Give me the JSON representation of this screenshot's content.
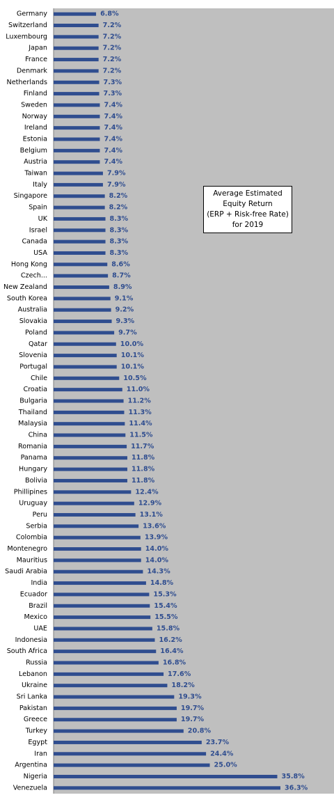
{
  "chart_data": {
    "type": "bar",
    "orientation": "horizontal",
    "title": "Average Estimated\nEquity Return\n(ERP + Risk-free Rate)\nfor 2019",
    "xlabel": "",
    "ylabel": "",
    "xlim": [
      0,
      40
    ],
    "grid": false,
    "legend": "none",
    "value_suffix": "%",
    "colors": {
      "bar": "#2F4D8F",
      "plot_background": "#BFBFBF",
      "label": "#2F4D8F"
    },
    "categories": [
      "Germany",
      "Switzerland",
      "Luxembourg",
      "Japan",
      "France",
      "Denmark",
      "Netherlands",
      "Finland",
      "Sweden",
      "Norway",
      "Ireland",
      "Estonia",
      "Belgium",
      "Austria",
      "Taiwan",
      "Italy",
      "Singapore",
      "Spain",
      "UK",
      "Israel",
      "Canada",
      "USA",
      "Hong Kong",
      "Czech...",
      "New Zealand",
      "South Korea",
      "Australia",
      "Slovakia",
      "Poland",
      "Qatar",
      "Slovenia",
      "Portugal",
      "Chile",
      "Croatia",
      "Bulgaria",
      "Thailand",
      "Malaysia",
      "China",
      "Romania",
      "Panama",
      "Hungary",
      "Bolivia",
      "Phillipines",
      "Uruguay",
      "Peru",
      "Serbia",
      "Colombia",
      "Montenegro",
      "Mauritius",
      "Saudi Arabia",
      "India",
      "Ecuador",
      "Brazil",
      "Mexico",
      "UAE",
      "Indonesia",
      "South Africa",
      "Russia",
      "Lebanon",
      "Ukraine",
      "Sri Lanka",
      "Pakistan",
      "Greece",
      "Turkey",
      "Egypt",
      "Iran",
      "Argentina",
      "Nigeria",
      "Venezuela"
    ],
    "values": [
      6.8,
      7.2,
      7.2,
      7.2,
      7.2,
      7.2,
      7.3,
      7.3,
      7.4,
      7.4,
      7.4,
      7.4,
      7.4,
      7.4,
      7.9,
      7.9,
      8.2,
      8.2,
      8.3,
      8.3,
      8.3,
      8.3,
      8.6,
      8.7,
      8.9,
      9.1,
      9.2,
      9.3,
      9.7,
      10.0,
      10.1,
      10.1,
      10.5,
      11.0,
      11.2,
      11.3,
      11.4,
      11.5,
      11.7,
      11.8,
      11.8,
      11.8,
      12.4,
      12.9,
      13.1,
      13.6,
      13.9,
      14.0,
      14.0,
      14.3,
      14.8,
      15.3,
      15.4,
      15.5,
      15.8,
      16.2,
      16.4,
      16.8,
      17.6,
      18.2,
      19.3,
      19.7,
      19.7,
      20.8,
      23.7,
      24.4,
      25.0,
      35.8,
      36.3
    ],
    "labels": [
      "6.8%",
      "7.2%",
      "7.2%",
      "7.2%",
      "7.2%",
      "7.2%",
      "7.3%",
      "7.3%",
      "7.4%",
      "7.4%",
      "7.4%",
      "7.4%",
      "7.4%",
      "7.4%",
      "7.9%",
      "7.9%",
      "8.2%",
      "8.2%",
      "8.3%",
      "8.3%",
      "8.3%",
      "8.3%",
      "8.6%",
      "8.7%",
      "8.9%",
      "9.1%",
      "9.2%",
      "9.3%",
      "9.7%",
      "10.0%",
      "10.1%",
      "10.1%",
      "10.5%",
      "11.0%",
      "11.2%",
      "11.3%",
      "11.4%",
      "11.5%",
      "11.7%",
      "11.8%",
      "11.8%",
      "11.8%",
      "12.4%",
      "12.9%",
      "13.1%",
      "13.6%",
      "13.9%",
      "14.0%",
      "14.0%",
      "14.3%",
      "14.8%",
      "15.3%",
      "15.4%",
      "15.5%",
      "15.8%",
      "16.2%",
      "16.4%",
      "16.8%",
      "17.6%",
      "18.2%",
      "19.3%",
      "19.7%",
      "19.7%",
      "20.8%",
      "23.7%",
      "24.4%",
      "25.0%",
      "35.8%",
      "36.3%"
    ]
  }
}
